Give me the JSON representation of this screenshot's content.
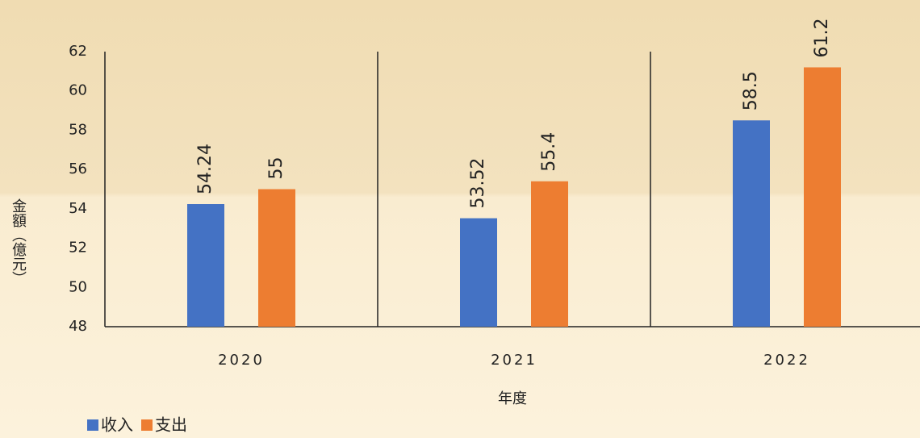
{
  "chart_data": {
    "type": "bar",
    "categories": [
      "2020",
      "2021",
      "2022"
    ],
    "series": [
      {
        "name": "收入",
        "color": "#4472c4",
        "values": [
          54.24,
          53.52,
          58.5
        ]
      },
      {
        "name": "支出",
        "color": "#ed7d31",
        "values": [
          55,
          55.4,
          61.2
        ]
      }
    ],
    "ylim": [
      48,
      62
    ],
    "yticks": [
      48,
      50,
      52,
      54,
      56,
      58,
      60,
      62
    ],
    "ylabel": "金額（億元）",
    "xlabel": "年度",
    "legend": "bottom-left",
    "grid": false
  }
}
